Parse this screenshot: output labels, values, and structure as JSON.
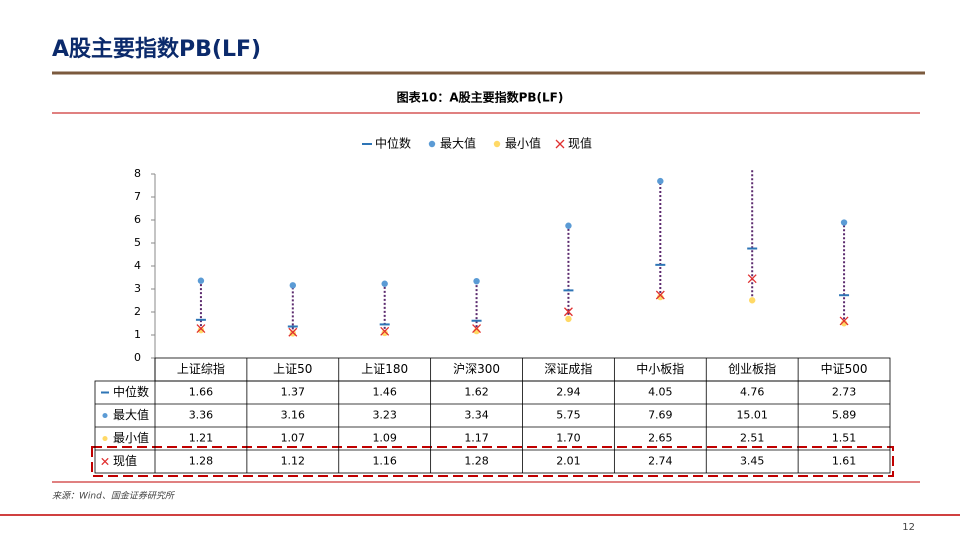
{
  "page_title": "A股主要指数PB(LF)",
  "source": "来源：Wind、国金证券研究所",
  "page_number": "12",
  "chart_data": {
    "type": "range",
    "title": "图表10：A股主要指数PB(LF)",
    "categories": [
      "上证综指",
      "上证50",
      "上证180",
      "沪深300",
      "深证成指",
      "中小板指",
      "创业板指",
      "中证500"
    ],
    "ylim": [
      0,
      8
    ],
    "yticks": [
      0,
      1,
      2,
      3,
      4,
      5,
      6,
      7,
      8
    ],
    "range_color": "#5b2a6e",
    "series": [
      {
        "name": "中位数",
        "color": "#2e75b6",
        "marker": "dash",
        "values": [
          1.66,
          1.37,
          1.46,
          1.62,
          2.94,
          4.05,
          4.76,
          2.73
        ],
        "value_labels": [
          "1.66",
          "1.37",
          "1.46",
          "1.62",
          "2.94",
          "4.05",
          "4.76",
          "2.73"
        ]
      },
      {
        "name": "最大值",
        "color": "#5b9bd5",
        "marker": "circle",
        "values": [
          3.36,
          3.16,
          3.23,
          3.34,
          5.75,
          7.69,
          15.01,
          5.89
        ],
        "value_labels": [
          "3.36",
          "3.16",
          "3.23",
          "3.34",
          "5.75",
          "7.69",
          "15.01",
          "5.89"
        ]
      },
      {
        "name": "最小值",
        "color": "#ffd966",
        "marker": "circle",
        "values": [
          1.21,
          1.07,
          1.09,
          1.17,
          1.7,
          2.65,
          2.51,
          1.51
        ],
        "value_labels": [
          "1.21",
          "1.07",
          "1.09",
          "1.17",
          "1.70",
          "2.65",
          "2.51",
          "1.51"
        ]
      },
      {
        "name": "现值",
        "color": "#e03030",
        "marker": "x",
        "values": [
          1.28,
          1.12,
          1.16,
          1.28,
          2.01,
          2.74,
          3.45,
          1.61
        ],
        "value_labels": [
          "1.28",
          "1.12",
          "1.16",
          "1.28",
          "2.01",
          "2.74",
          "3.45",
          "1.61"
        ]
      }
    ]
  }
}
